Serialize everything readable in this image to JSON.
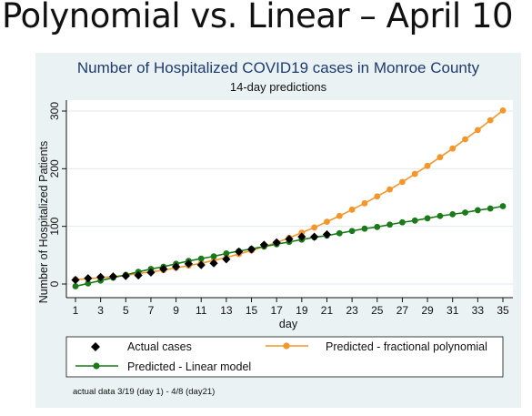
{
  "slide": {
    "title": "Polynomial vs. Linear – April 10"
  },
  "colors": {
    "actual": "#000000",
    "polynomial": "#f5962a",
    "linear": "#1a7a1a",
    "panel_bg": "#eaf2f3",
    "title": "#1f3b6e"
  },
  "chart_data": {
    "type": "line",
    "title": "Number of Hospitalized COVID19 cases in Monroe County",
    "subtitle": "14-day predictions",
    "xlabel": "day",
    "ylabel": "Number of Hospitalized Patients",
    "xlim": [
      1,
      35
    ],
    "ylim": [
      0,
      300
    ],
    "x_ticks": [
      "1",
      "3",
      "5",
      "7",
      "9",
      "11",
      "13",
      "15",
      "17",
      "19",
      "21",
      "23",
      "25",
      "27",
      "29",
      "31",
      "33",
      "35"
    ],
    "y_ticks": [
      "0",
      "100",
      "200",
      "300"
    ],
    "grid": "horizontal",
    "legend": "bottom",
    "series": [
      {
        "name": "Actual cases",
        "style": "diamond",
        "x": [
          1,
          2,
          3,
          4,
          5,
          6,
          7,
          8,
          9,
          10,
          11,
          12,
          13,
          14,
          15,
          16,
          17,
          18,
          19,
          20,
          21
        ],
        "y": [
          7,
          10,
          12,
          13,
          14,
          15,
          20,
          26,
          30,
          35,
          33,
          36,
          43,
          56,
          60,
          68,
          72,
          78,
          82,
          82,
          86
        ]
      },
      {
        "name": "Predicted - fractional polynomial",
        "style": "line-circle",
        "x": [
          1,
          2,
          3,
          4,
          5,
          6,
          7,
          8,
          9,
          10,
          11,
          12,
          13,
          14,
          15,
          16,
          17,
          18,
          19,
          20,
          21,
          22,
          23,
          24,
          25,
          26,
          27,
          28,
          29,
          30,
          31,
          32,
          33,
          34,
          35
        ],
        "y": [
          8,
          9,
          11,
          13,
          15,
          18,
          21,
          24,
          28,
          32,
          36,
          41,
          46,
          52,
          58,
          65,
          72,
          80,
          89,
          98,
          108,
          118,
          129,
          140,
          152,
          164,
          177,
          191,
          205,
          220,
          235,
          251,
          267,
          284,
          301
        ]
      },
      {
        "name": "Predicted - Linear model",
        "style": "line-circle",
        "x": [
          1,
          2,
          3,
          4,
          5,
          6,
          7,
          8,
          9,
          10,
          11,
          12,
          13,
          14,
          15,
          16,
          17,
          18,
          19,
          20,
          21,
          22,
          23,
          24,
          25,
          26,
          27,
          28,
          29,
          30,
          31,
          32,
          33,
          34,
          35
        ],
        "y": [
          -4,
          1,
          6,
          11,
          16,
          21,
          26,
          30,
          35,
          40,
          44,
          48,
          53,
          57,
          61,
          65,
          69,
          73,
          77,
          81,
          84,
          88,
          92,
          96,
          99,
          103,
          107,
          110,
          114,
          118,
          121,
          124,
          128,
          131,
          135
        ]
      }
    ],
    "note": "actual data 3/19 (day 1) - 4/8 (day21)"
  }
}
